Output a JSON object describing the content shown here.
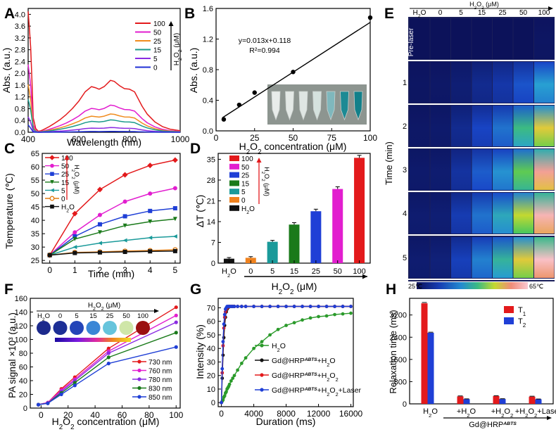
{
  "figure": {
    "panel_letters": [
      "A",
      "B",
      "C",
      "D",
      "E",
      "F",
      "G",
      "H"
    ]
  },
  "chart_data": [
    {
      "panel": "A",
      "type": "line",
      "xlabel": "Wavelength (nm)",
      "ylabel": "Abs. (a.u.)",
      "xlim": [
        400,
        1000
      ],
      "ylim": [
        0,
        4.2
      ],
      "xticks": [
        "400",
        "600",
        "800",
        "1000"
      ],
      "yticks": [
        "0.0",
        "0.4",
        "0.8",
        "1.2",
        "1.6",
        "2.0",
        "2.4",
        "2.8",
        "3.2",
        "3.6",
        "4.0"
      ],
      "legend_title": "H2O2 (μM)",
      "legend_position": "top-right",
      "shape": {
        "x": [
          400,
          405,
          410,
          415,
          420,
          430,
          440,
          450,
          460,
          480,
          500,
          525,
          550,
          575,
          600,
          625,
          650,
          665,
          680,
          700,
          725,
          740,
          760,
          780,
          800,
          820,
          835,
          850,
          870,
          900,
          930,
          960,
          1000
        ],
        "y": [
          1.0,
          1.0,
          0.93,
          0.55,
          0.28,
          0.07,
          0.02,
          0.03,
          0.05,
          0.1,
          0.16,
          0.24,
          0.34,
          0.46,
          0.6,
          0.78,
          0.88,
          0.86,
          0.83,
          0.88,
          1.0,
          0.98,
          0.9,
          0.84,
          0.83,
          0.78,
          0.64,
          0.5,
          0.35,
          0.2,
          0.11,
          0.06,
          0.03
        ]
      },
      "series": [
        {
          "name": "100",
          "color": "#e31a1c",
          "start": 4.1,
          "peak": 1.76
        },
        {
          "name": "50",
          "color": "#e21ecf",
          "start": 2.3,
          "peak": 0.92
        },
        {
          "name": "25",
          "color": "#f08c1e",
          "start": 1.62,
          "peak": 0.62
        },
        {
          "name": "15",
          "color": "#1a9a8a",
          "start": 1.12,
          "peak": 0.42
        },
        {
          "name": "5",
          "color": "#8a2be2",
          "start": 0.52,
          "peak": 0.16
        },
        {
          "name": "0",
          "color": "#1f2fd6",
          "start": 0.25,
          "peak": 0.03
        }
      ]
    },
    {
      "panel": "B",
      "type": "scatter",
      "xlabel": "H2O2 concentration (μM)",
      "ylabel": "Abs. (a.u.)",
      "xlim": [
        0,
        100
      ],
      "ylim": [
        0,
        1.6
      ],
      "xticks": [
        "0",
        "25",
        "50",
        "75",
        "100"
      ],
      "yticks": [
        "0.0",
        "0.4",
        "0.8",
        "1.2",
        "1.6"
      ],
      "x": [
        5,
        15,
        25,
        50,
        100
      ],
      "y": [
        0.15,
        0.34,
        0.5,
        0.77,
        1.48
      ],
      "fit_line": [
        [
          4,
          0.17
        ],
        [
          100,
          1.418
        ]
      ],
      "annotation": [
        "y=0.013x+0.118",
        "R²=0.994"
      ]
    },
    {
      "panel": "C",
      "type": "line",
      "xlabel": "Time (min)",
      "ylabel": "Temperature (℃)",
      "xlim": [
        -0.3,
        5.2
      ],
      "ylim": [
        24,
        65
      ],
      "xticks": [
        "0",
        "1",
        "2",
        "3",
        "4",
        "5"
      ],
      "yticks": [
        "25",
        "30",
        "35",
        "40",
        "45",
        "50",
        "55",
        "60",
        "65"
      ],
      "x": [
        0,
        1,
        2,
        3,
        4,
        5
      ],
      "legend_title": "H2O2 (μM)",
      "series": [
        {
          "name": "100",
          "color": "#e31a1c",
          "marker": "diamond",
          "values": [
            27.0,
            42.5,
            51.5,
            57.0,
            60.5,
            62.5
          ]
        },
        {
          "name": "50",
          "color": "#e21ecf",
          "marker": "circle",
          "values": [
            27.0,
            35.5,
            42.0,
            47.0,
            50.0,
            52.0
          ]
        },
        {
          "name": "25",
          "color": "#1f3fd6",
          "marker": "square",
          "values": [
            27.0,
            34.0,
            38.5,
            41.5,
            43.5,
            44.5
          ]
        },
        {
          "name": "15",
          "color": "#1a7a1a",
          "marker": "triangle-down",
          "values": [
            27.0,
            33.0,
            35.5,
            38.0,
            39.5,
            40.5
          ]
        },
        {
          "name": "5",
          "color": "#1a9a9a",
          "marker": "triangle-left",
          "values": [
            27.0,
            30.0,
            31.5,
            32.5,
            33.5,
            34.0
          ]
        },
        {
          "name": "0",
          "color": "#e07a10",
          "marker": "circle-open",
          "values": [
            27.0,
            28.0,
            28.2,
            28.5,
            28.7,
            29.0
          ]
        },
        {
          "name": "H2O",
          "color": "#111111",
          "marker": "square",
          "values": [
            27.0,
            27.8,
            28.0,
            28.2,
            28.4,
            28.5
          ]
        }
      ]
    },
    {
      "panel": "D",
      "type": "bar",
      "xlabel": "H2O2 (μM)",
      "ylabel": "ΔT (℃)",
      "ylim": [
        0,
        37
      ],
      "yticks": [
        "0",
        "7",
        "14",
        "21",
        "28",
        "35"
      ],
      "categories": [
        "H2O",
        "0",
        "5",
        "15",
        "25",
        "50",
        "100"
      ],
      "values": [
        1.5,
        1.8,
        7.2,
        13.0,
        17.5,
        25.0,
        35.5
      ],
      "errors": [
        0.15,
        0.15,
        0.25,
        0.4,
        0.45,
        0.5,
        0.6
      ],
      "colors": [
        "#111111",
        "#f0821e",
        "#1a9a9a",
        "#1a7a1a",
        "#1f3fd6",
        "#e21ecf",
        "#e31a1c"
      ],
      "legend": [
        "100",
        "50",
        "25",
        "15",
        "5",
        "0",
        "H2O"
      ],
      "legend_title": "H2O2 (μM)"
    },
    {
      "panel": "E",
      "type": "heatmap",
      "top_title": "H2O2 (μM)",
      "columns": [
        "H2O",
        "0",
        "5",
        "15",
        "25",
        "50",
        "100"
      ],
      "rows": [
        "Pre-laser",
        "1",
        "2",
        "3",
        "4",
        "5"
      ],
      "ylabel": "Time (min)",
      "scale_min": "25℃",
      "scale_max": "65℃",
      "levels": [
        [
          0.0,
          0.0,
          0.0,
          0.0,
          0.0,
          0.0,
          0.02
        ],
        [
          0.02,
          0.03,
          0.06,
          0.12,
          0.18,
          0.28,
          0.45
        ],
        [
          0.03,
          0.04,
          0.12,
          0.24,
          0.35,
          0.55,
          0.75
        ],
        [
          0.04,
          0.05,
          0.16,
          0.3,
          0.42,
          0.62,
          0.9
        ],
        [
          0.05,
          0.06,
          0.2,
          0.35,
          0.48,
          0.7,
          0.95
        ],
        [
          0.05,
          0.07,
          0.22,
          0.38,
          0.52,
          0.75,
          0.98
        ]
      ]
    },
    {
      "panel": "F",
      "type": "line",
      "xlabel": "H2O2 concentration (μM)",
      "ylabel": "PA signal ×10³ (a.u.)",
      "xlim": [
        -8,
        103
      ],
      "ylim": [
        0,
        160
      ],
      "xticks": [
        "0",
        "20",
        "40",
        "60",
        "80",
        "100"
      ],
      "yticks": [
        "0",
        "20",
        "40",
        "60",
        "80",
        "100",
        "120",
        "140",
        "160"
      ],
      "x": [
        -2,
        5,
        15,
        25,
        50,
        100
      ],
      "inset_title": "H2O2 (μM)",
      "inset_labels": [
        "H2O",
        "0",
        "5",
        "15",
        "25",
        "50",
        "100"
      ],
      "series": [
        {
          "name": "730 nm",
          "color": "#e31a1c",
          "values": [
            5,
            8,
            28,
            45,
            87,
            147
          ]
        },
        {
          "name": "760 nm",
          "color": "#e21ecf",
          "values": [
            5,
            8,
            26,
            42,
            83,
            135
          ]
        },
        {
          "name": "780 nm",
          "color": "#8a2be2",
          "values": [
            5,
            7,
            24,
            40,
            80,
            125
          ]
        },
        {
          "name": "830 nm",
          "color": "#1a7a1a",
          "values": [
            5,
            7,
            22,
            37,
            74,
            110
          ]
        },
        {
          "name": "850 nm",
          "color": "#1f3fd6",
          "values": [
            5,
            7,
            20,
            33,
            65,
            89
          ]
        }
      ]
    },
    {
      "panel": "G",
      "type": "line",
      "xlabel": "Duration (ms)",
      "ylabel": "Intensity (%)",
      "xlim": [
        -400,
        16300
      ],
      "ylim": [
        -3,
        77
      ],
      "xticks": [
        "0",
        "4000",
        "8000",
        "12000",
        "16000"
      ],
      "yticks": [
        "0",
        "10",
        "20",
        "30",
        "40",
        "50",
        "60",
        "70"
      ],
      "x": [
        0,
        100,
        200,
        300,
        400,
        500,
        600,
        700,
        800,
        900,
        1000,
        1200,
        1400,
        1600,
        2000,
        2500,
        3000,
        4000,
        5000,
        6000,
        7000,
        8000,
        9000,
        10000,
        11000,
        12000,
        13000,
        14000,
        15000,
        16000
      ],
      "series": [
        {
          "name": "H2O",
          "color": "#2a9a2a",
          "values": [
            0,
            1,
            2,
            4,
            5,
            7,
            8,
            10,
            11,
            12,
            13.5,
            16,
            18,
            20,
            24,
            29,
            33,
            40,
            45,
            50,
            54,
            57,
            59,
            61,
            62.5,
            63.5,
            64,
            65,
            65.5,
            66
          ]
        },
        {
          "name": "Gd@HRP^ABTS+H2O",
          "color": "#111111",
          "values": [
            0,
            18,
            35,
            48,
            57,
            63,
            67,
            69,
            70,
            70.5,
            71,
            71,
            71,
            71,
            71,
            71,
            71,
            71,
            71,
            71,
            71,
            71,
            71,
            71,
            71,
            71,
            71,
            71,
            71,
            71
          ]
        },
        {
          "name": "Gd@HRP^ABTS+H2O2",
          "color": "#e31a1c",
          "values": [
            0,
            22,
            42,
            55,
            63,
            67,
            69,
            70,
            70.5,
            71,
            71,
            71,
            71,
            71,
            71,
            71,
            71,
            71,
            71,
            71,
            71,
            71,
            71,
            71,
            71,
            71,
            71,
            71,
            71,
            71
          ]
        },
        {
          "name": "Gd@HRP^ABTS+H2O2+Laser",
          "color": "#1f3fd6",
          "values": [
            0,
            25,
            45,
            58,
            65,
            69,
            70,
            71,
            71,
            71,
            71,
            71,
            71,
            71,
            71,
            71,
            71,
            71,
            71,
            71,
            71,
            71,
            71,
            71,
            71,
            71,
            71,
            71,
            71,
            71
          ]
        }
      ]
    },
    {
      "panel": "H",
      "type": "bar",
      "ylabel": "Relaxation time (ms)",
      "ylim": [
        0,
        3800
      ],
      "yticks": [
        "0",
        "800",
        "1600",
        "2400",
        "3200"
      ],
      "categories": [
        "H2O",
        "+H2O",
        "+H2O2",
        "+H2O2+Laser"
      ],
      "group_label": "Gd@HRP^ABTS",
      "series": [
        {
          "name": "T1",
          "color": "#e31a1c",
          "values": [
            3620,
            270,
            280,
            260
          ],
          "errors": [
            30,
            15,
            15,
            15
          ]
        },
        {
          "name": "T2",
          "color": "#1f3fd6",
          "values": [
            2560,
            170,
            175,
            165
          ],
          "errors": [
            20,
            10,
            10,
            10
          ]
        }
      ]
    }
  ]
}
